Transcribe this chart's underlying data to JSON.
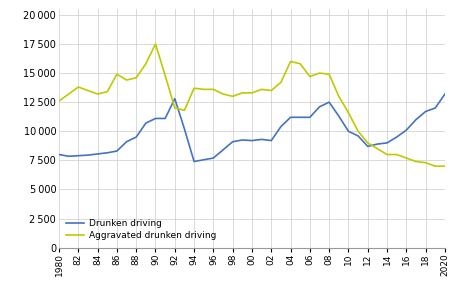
{
  "drunken_color": "#4472c4",
  "agg_color": "#bfca00",
  "background_color": "#ffffff",
  "grid_color": "#cccccc",
  "yticks": [
    0,
    2500,
    5000,
    7500,
    10000,
    12500,
    15000,
    17500,
    20000
  ],
  "xticks": [
    1980,
    1982,
    1984,
    1986,
    1988,
    1990,
    1992,
    1994,
    1996,
    1998,
    2000,
    2002,
    2004,
    2006,
    2008,
    2010,
    2012,
    2014,
    2016,
    2018,
    2020
  ],
  "legend_drunken": "Drunken driving",
  "legend_agg": "Aggravated drunken driving",
  "ylim": [
    0,
    20500
  ],
  "xlim": [
    1980,
    2020
  ],
  "drunken_data": {
    "1980": 8000,
    "1981": 7850,
    "1982": 7900,
    "1983": 7950,
    "1984": 8050,
    "1985": 8150,
    "1986": 8300,
    "1987": 9100,
    "1988": 9500,
    "1989": 10700,
    "1990": 11100,
    "1991": 11100,
    "1992": 12800,
    "1993": 10200,
    "1994": 7400,
    "1995": 7550,
    "1996": 7700,
    "1997": 8400,
    "1998": 9100,
    "1999": 9250,
    "2000": 9200,
    "2001": 9300,
    "2002": 9200,
    "2003": 10400,
    "2004": 11200,
    "2005": 11200,
    "2006": 11200,
    "2007": 12100,
    "2008": 12500,
    "2009": 11300,
    "2010": 10000,
    "2011": 9600,
    "2012": 8700,
    "2013": 8900,
    "2014": 9000,
    "2015": 9500,
    "2016": 10100,
    "2017": 11000,
    "2018": 11700,
    "2019": 12000,
    "2020": 13200
  },
  "agg_data": {
    "1980": 12600,
    "1981": 13200,
    "1982": 13800,
    "1983": 13500,
    "1984": 13200,
    "1985": 13400,
    "1986": 14900,
    "1987": 14400,
    "1988": 14600,
    "1989": 15800,
    "1990": 17500,
    "1991": 14800,
    "1992": 12000,
    "1993": 11800,
    "1994": 13700,
    "1995": 13600,
    "1996": 13600,
    "1997": 13200,
    "1998": 13000,
    "1999": 13300,
    "2000": 13300,
    "2001": 13600,
    "2002": 13500,
    "2003": 14200,
    "2004": 16000,
    "2005": 15800,
    "2006": 14700,
    "2007": 15000,
    "2008": 14900,
    "2009": 13000,
    "2010": 11600,
    "2011": 10000,
    "2012": 9000,
    "2013": 8500,
    "2014": 8000,
    "2015": 8000,
    "2016": 7700,
    "2017": 7400,
    "2018": 7300,
    "2019": 7000,
    "2020": 7000
  }
}
